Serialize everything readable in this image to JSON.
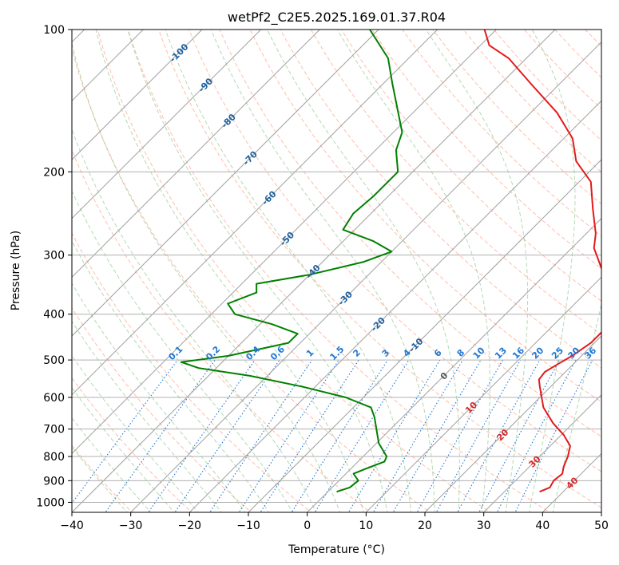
{
  "chart_data": {
    "type": "line",
    "title": "wetPf2_C2E5.2025.169.01.37.R04",
    "xlabel": "Temperature (°C)",
    "ylabel": "Pressure (hPa)",
    "xlim": [
      -40,
      50
    ],
    "ylim": [
      1050,
      100
    ],
    "y_scale": "log",
    "x_ticks": [
      -40,
      -30,
      -20,
      -10,
      0,
      10,
      20,
      30,
      40,
      50
    ],
    "y_ticks": [
      100,
      200,
      300,
      400,
      500,
      600,
      700,
      800,
      900,
      1000
    ],
    "grid": true,
    "skew": "skew-T log-p",
    "colors": {
      "temperature": "#e41a1c",
      "dewpoint": "#008000",
      "isotherm": "#a0a0a0",
      "dry_adiabat": "#ff8866",
      "moist_adiabat": "#80c080",
      "mixing_ratio": "#1f77d4",
      "isotherm_label": "#1f5f9f",
      "upper_label": "#d62728"
    },
    "series": [
      {
        "name": "",
        "role": "temperature",
        "points": [
          {
            "p": 950,
            "t": 36.0
          },
          {
            "p": 930,
            "t": 37.0
          },
          {
            "p": 900,
            "t": 36.5
          },
          {
            "p": 870,
            "t": 36.8
          },
          {
            "p": 840,
            "t": 35.8
          },
          {
            "p": 800,
            "t": 34.8
          },
          {
            "p": 760,
            "t": 33.4
          },
          {
            "p": 720,
            "t": 30.4
          },
          {
            "p": 680,
            "t": 26.6
          },
          {
            "p": 630,
            "t": 22.3
          },
          {
            "p": 600,
            "t": 20.3
          },
          {
            "p": 570,
            "t": 18.2
          },
          {
            "p": 550,
            "t": 16.8
          },
          {
            "p": 530,
            "t": 16.5
          },
          {
            "p": 510,
            "t": 17.4
          },
          {
            "p": 490,
            "t": 18.4
          },
          {
            "p": 460,
            "t": 19.4
          },
          {
            "p": 430,
            "t": 19.4
          },
          {
            "p": 400,
            "t": 18.0
          },
          {
            "p": 370,
            "t": 15.2
          },
          {
            "p": 340,
            "t": 11.4
          },
          {
            "p": 310,
            "t": 7.0
          },
          {
            "p": 290,
            "t": 3.8
          },
          {
            "p": 270,
            "t": 1.6
          },
          {
            "p": 240,
            "t": -3.0
          },
          {
            "p": 210,
            "t": -8.0
          },
          {
            "p": 190,
            "t": -14.0
          },
          {
            "p": 170,
            "t": -18.5
          },
          {
            "p": 150,
            "t": -25.5
          },
          {
            "p": 130,
            "t": -35.0
          },
          {
            "p": 115,
            "t": -43.0
          },
          {
            "p": 108,
            "t": -48.5
          },
          {
            "p": 100,
            "t": -52.0
          }
        ]
      },
      {
        "name": "",
        "role": "dewpoint",
        "points": [
          {
            "p": 950,
            "t": 1.5
          },
          {
            "p": 930,
            "t": 3.0
          },
          {
            "p": 900,
            "t": 3.3
          },
          {
            "p": 870,
            "t": 1.3
          },
          {
            "p": 850,
            "t": 2.5
          },
          {
            "p": 820,
            "t": 4.5
          },
          {
            "p": 800,
            "t": 4.0
          },
          {
            "p": 750,
            "t": 0.4
          },
          {
            "p": 700,
            "t": -2.4
          },
          {
            "p": 660,
            "t": -4.8
          },
          {
            "p": 630,
            "t": -7.0
          },
          {
            "p": 600,
            "t": -13.0
          },
          {
            "p": 570,
            "t": -22.0
          },
          {
            "p": 540,
            "t": -33.0
          },
          {
            "p": 520,
            "t": -43.0
          },
          {
            "p": 505,
            "t": -47.0
          },
          {
            "p": 490,
            "t": -40.0
          },
          {
            "p": 460,
            "t": -32.0
          },
          {
            "p": 440,
            "t": -32.0
          },
          {
            "p": 420,
            "t": -38.0
          },
          {
            "p": 400,
            "t": -46.0
          },
          {
            "p": 380,
            "t": -49.0
          },
          {
            "p": 360,
            "t": -46.0
          },
          {
            "p": 345,
            "t": -47.5
          },
          {
            "p": 330,
            "t": -40.0
          },
          {
            "p": 310,
            "t": -33.0
          },
          {
            "p": 295,
            "t": -30.0
          },
          {
            "p": 280,
            "t": -35.0
          },
          {
            "p": 265,
            "t": -42.0
          },
          {
            "p": 245,
            "t": -43.0
          },
          {
            "p": 225,
            "t": -42.5
          },
          {
            "p": 200,
            "t": -42.5
          },
          {
            "p": 180,
            "t": -46.5
          },
          {
            "p": 165,
            "t": -48.5
          },
          {
            "p": 150,
            "t": -52.5
          },
          {
            "p": 130,
            "t": -58.5
          },
          {
            "p": 115,
            "t": -63.5
          },
          {
            "p": 100,
            "t": -71.5
          }
        ]
      }
    ],
    "isotherm_labels": [
      {
        "t": -100,
        "p": 112,
        "text": "-100"
      },
      {
        "t": -90,
        "p": 131,
        "text": "-90"
      },
      {
        "t": -80,
        "p": 156,
        "text": "-80"
      },
      {
        "t": -70,
        "p": 187,
        "text": "-70"
      },
      {
        "t": -60,
        "p": 227,
        "text": "-60"
      },
      {
        "t": -50,
        "p": 277,
        "text": "-50"
      },
      {
        "t": -40,
        "p": 325,
        "text": "-40"
      },
      {
        "t": -30,
        "p": 370,
        "text": "-30"
      },
      {
        "t": -20,
        "p": 420,
        "text": "-20"
      },
      {
        "t": -10,
        "p": 465,
        "text": "-10"
      },
      {
        "t": 0,
        "p": 540,
        "text": "0"
      }
    ],
    "mixing_ratio_labels": [
      {
        "w": 0.1,
        "text": "0.1"
      },
      {
        "w": 0.2,
        "text": "0.2"
      },
      {
        "w": 0.4,
        "text": "0.4"
      },
      {
        "w": 0.6,
        "text": "0.6"
      },
      {
        "w": 1,
        "text": "1"
      },
      {
        "w": 1.5,
        "text": "1.5"
      },
      {
        "w": 2,
        "text": "2"
      },
      {
        "w": 3,
        "text": "3"
      },
      {
        "w": 4,
        "text": "4"
      },
      {
        "w": 6,
        "text": "6"
      },
      {
        "w": 8,
        "text": "8"
      },
      {
        "w": 10,
        "text": "10"
      },
      {
        "w": 13,
        "text": "13"
      },
      {
        "w": 16,
        "text": "16"
      },
      {
        "w": 20,
        "text": "20"
      },
      {
        "w": 25,
        "text": "25"
      },
      {
        "w": 30,
        "text": "30"
      },
      {
        "w": 36,
        "text": "36"
      }
    ],
    "upper_labels": [
      {
        "t": 10,
        "p": 630,
        "text": "10"
      },
      {
        "t": 20,
        "p": 720,
        "text": "20"
      },
      {
        "t": 30,
        "p": 820,
        "text": "30"
      },
      {
        "t": 40,
        "p": 910,
        "text": "40"
      }
    ]
  }
}
